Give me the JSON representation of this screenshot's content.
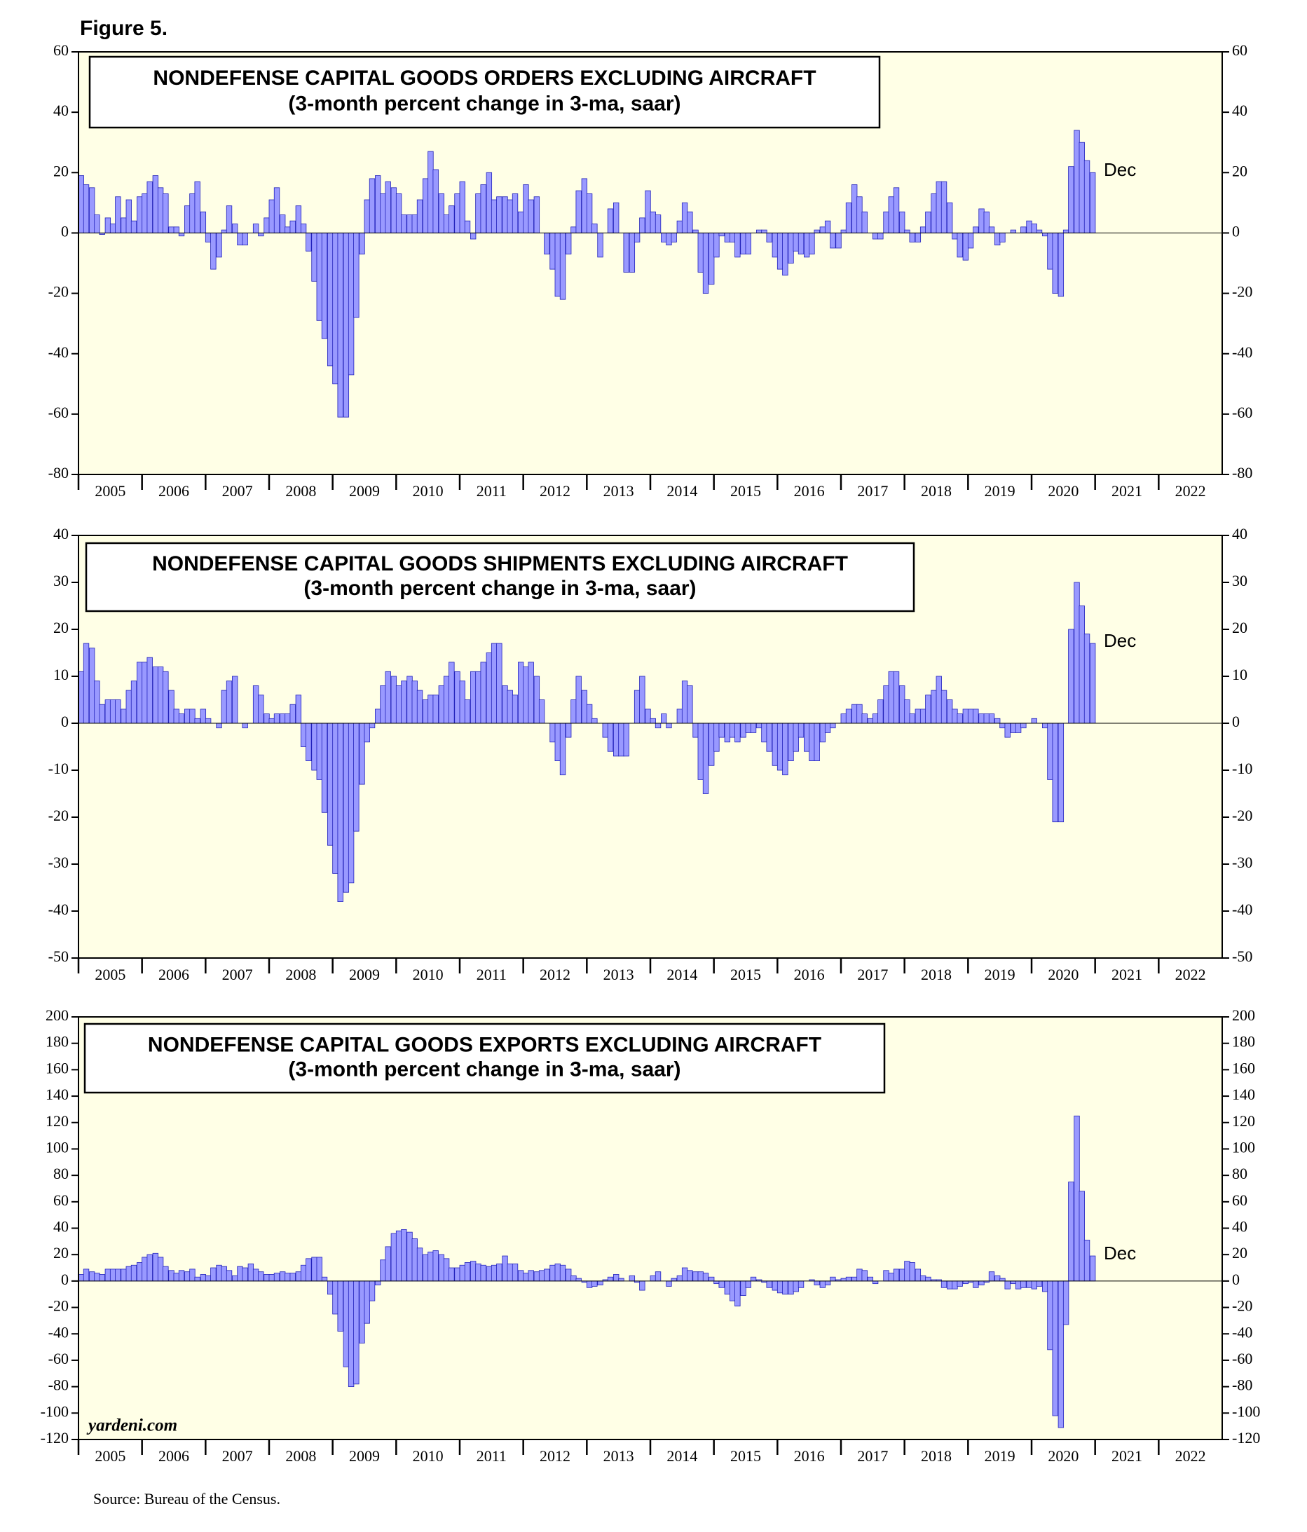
{
  "title": "Figure 5.",
  "source": "Source: Bureau of the Census.",
  "watermark": "yardeni.com",
  "chart_data": [
    {
      "type": "bar",
      "title": "NONDEFENSE CAPITAL GOODS ORDERS EXCLUDING AIRCRAFT",
      "subtitle": "(3-month percent change in 3-ma, saar)",
      "annotation": "Dec",
      "color": "#9999ff",
      "xlim": [
        2005,
        2023
      ],
      "xticks": [
        2005,
        2006,
        2007,
        2008,
        2009,
        2010,
        2011,
        2012,
        2013,
        2014,
        2015,
        2016,
        2017,
        2018,
        2019,
        2020,
        2021,
        2022
      ],
      "ylim": [
        -80,
        60
      ],
      "yticks": [
        -80,
        -60,
        -40,
        -20,
        0,
        20,
        40,
        60
      ],
      "x": [
        2005,
        2005.08,
        2005.17,
        2005.25,
        2005.33,
        2005.42,
        2005.5,
        2005.58,
        2005.67,
        2005.75,
        2005.83,
        2005.92,
        2006,
        2006.08,
        2006.17,
        2006.25,
        2006.33,
        2006.42,
        2006.5,
        2006.58,
        2006.67,
        2006.75,
        2006.83,
        2006.92,
        2007,
        2007.08,
        2007.17,
        2007.25,
        2007.33,
        2007.42,
        2007.5,
        2007.58,
        2007.67,
        2007.75,
        2007.83,
        2007.92,
        2008,
        2008.08,
        2008.17,
        2008.25,
        2008.33,
        2008.42,
        2008.5,
        2008.58,
        2008.67,
        2008.75,
        2008.83,
        2008.92,
        2009,
        2009.08,
        2009.17,
        2009.25,
        2009.33,
        2009.42,
        2009.5,
        2009.58,
        2009.67,
        2009.75,
        2009.83,
        2009.92,
        2010,
        2010.08,
        2010.17,
        2010.25,
        2010.33,
        2010.42,
        2010.5,
        2010.58,
        2010.67,
        2010.75,
        2010.83,
        2010.92,
        2011,
        2011.08,
        2011.17,
        2011.25,
        2011.33,
        2011.42,
        2011.5,
        2011.58,
        2011.67,
        2011.75,
        2011.83,
        2011.92,
        2012,
        2012.08,
        2012.17,
        2012.25,
        2012.33,
        2012.42,
        2012.5,
        2012.58,
        2012.67,
        2012.75,
        2012.83,
        2012.92,
        2013,
        2013.08,
        2013.17,
        2013.25,
        2013.33,
        2013.42,
        2013.5,
        2013.58,
        2013.67,
        2013.75,
        2013.83,
        2013.92,
        2014,
        2014.08,
        2014.17,
        2014.25,
        2014.33,
        2014.42,
        2014.5,
        2014.58,
        2014.67,
        2014.75,
        2014.83,
        2014.92,
        2015,
        2015.08,
        2015.17,
        2015.25,
        2015.33,
        2015.42,
        2015.5,
        2015.58,
        2015.67,
        2015.75,
        2015.83,
        2015.92,
        2016,
        2016.08,
        2016.17,
        2016.25,
        2016.33,
        2016.42,
        2016.5,
        2016.58,
        2016.67,
        2016.75,
        2016.83,
        2016.92,
        2017,
        2017.08,
        2017.17,
        2017.25,
        2017.33,
        2017.42,
        2017.5,
        2017.58,
        2017.67,
        2017.75,
        2017.83,
        2017.92,
        2018,
        2018.08,
        2018.17,
        2018.25,
        2018.33,
        2018.42,
        2018.5,
        2018.58,
        2018.67,
        2018.75,
        2018.83,
        2018.92,
        2019,
        2019.08,
        2019.17,
        2019.25,
        2019.33,
        2019.42,
        2019.5,
        2019.58,
        2019.67,
        2019.75,
        2019.83,
        2019.92,
        2020,
        2020.08,
        2020.17,
        2020.25,
        2020.33,
        2020.42,
        2020.5,
        2020.58,
        2020.67,
        2020.75,
        2020.83,
        2020.92
      ],
      "values": [
        19,
        16,
        15,
        6,
        -0.5,
        5,
        3,
        12,
        5,
        11,
        4,
        12,
        13,
        17,
        19,
        15,
        13,
        2,
        2,
        -1,
        9,
        13,
        17,
        7,
        -3,
        -12,
        -8,
        1,
        9,
        3,
        -4,
        -4,
        0,
        3,
        -1,
        5,
        11,
        15,
        6,
        2,
        4,
        9,
        3,
        -6,
        -16,
        -29,
        -35,
        -44,
        -50,
        -61,
        -61,
        -47,
        -28,
        -7,
        11,
        18,
        19,
        13,
        17,
        15,
        13,
        6,
        6,
        6,
        11,
        18,
        27,
        21,
        13,
        6,
        9,
        13,
        17,
        4,
        -2,
        13,
        16,
        20,
        11,
        12,
        12,
        11,
        13,
        7,
        16,
        11,
        12,
        0,
        -7,
        -12,
        -21,
        -22,
        -7,
        2,
        14,
        18,
        13,
        3,
        -8,
        0,
        8,
        10,
        0,
        -13,
        -13,
        -3,
        5,
        14,
        7,
        6,
        -3,
        -4,
        -3,
        4,
        10,
        7,
        1,
        -13,
        -20,
        -17,
        -8,
        -1,
        -3,
        -3,
        -8,
        -7,
        -7,
        0,
        1,
        1,
        -3,
        -8,
        -12,
        -14,
        -10,
        -6,
        -7,
        -8,
        -7,
        1,
        2,
        4,
        -5,
        -5,
        1,
        10,
        16,
        12,
        7,
        0,
        -2,
        -2,
        7,
        12,
        15,
        7,
        1,
        -3,
        -3,
        2,
        7,
        13,
        17,
        17,
        10,
        -2,
        -8,
        -9,
        -5,
        2,
        8,
        7,
        2,
        -4,
        -3,
        0,
        1,
        0,
        2,
        4,
        3,
        1,
        -1,
        -12,
        -20,
        -21,
        1,
        22,
        34,
        30,
        24,
        20
      ]
    },
    {
      "type": "bar",
      "title": "NONDEFENSE CAPITAL GOODS SHIPMENTS EXCLUDING AIRCRAFT",
      "subtitle": "(3-month percent change in 3-ma, saar)",
      "annotation": "Dec",
      "color": "#9999ff",
      "xlim": [
        2005,
        2023
      ],
      "xticks": [
        2005,
        2006,
        2007,
        2008,
        2009,
        2010,
        2011,
        2012,
        2013,
        2014,
        2015,
        2016,
        2017,
        2018,
        2019,
        2020,
        2021,
        2022
      ],
      "ylim": [
        -50,
        40
      ],
      "yticks": [
        -50,
        -40,
        -30,
        -20,
        -10,
        0,
        10,
        20,
        30,
        40
      ],
      "x": [
        2005,
        2005.08,
        2005.17,
        2005.25,
        2005.33,
        2005.42,
        2005.5,
        2005.58,
        2005.67,
        2005.75,
        2005.83,
        2005.92,
        2006,
        2006.08,
        2006.17,
        2006.25,
        2006.33,
        2006.42,
        2006.5,
        2006.58,
        2006.67,
        2006.75,
        2006.83,
        2006.92,
        2007,
        2007.08,
        2007.17,
        2007.25,
        2007.33,
        2007.42,
        2007.5,
        2007.58,
        2007.67,
        2007.75,
        2007.83,
        2007.92,
        2008,
        2008.08,
        2008.17,
        2008.25,
        2008.33,
        2008.42,
        2008.5,
        2008.58,
        2008.67,
        2008.75,
        2008.83,
        2008.92,
        2009,
        2009.08,
        2009.17,
        2009.25,
        2009.33,
        2009.42,
        2009.5,
        2009.58,
        2009.67,
        2009.75,
        2009.83,
        2009.92,
        2010,
        2010.08,
        2010.17,
        2010.25,
        2010.33,
        2010.42,
        2010.5,
        2010.58,
        2010.67,
        2010.75,
        2010.83,
        2010.92,
        2011,
        2011.08,
        2011.17,
        2011.25,
        2011.33,
        2011.42,
        2011.5,
        2011.58,
        2011.67,
        2011.75,
        2011.83,
        2011.92,
        2012,
        2012.08,
        2012.17,
        2012.25,
        2012.33,
        2012.42,
        2012.5,
        2012.58,
        2012.67,
        2012.75,
        2012.83,
        2012.92,
        2013,
        2013.08,
        2013.17,
        2013.25,
        2013.33,
        2013.42,
        2013.5,
        2013.58,
        2013.67,
        2013.75,
        2013.83,
        2013.92,
        2014,
        2014.08,
        2014.17,
        2014.25,
        2014.33,
        2014.42,
        2014.5,
        2014.58,
        2014.67,
        2014.75,
        2014.83,
        2014.92,
        2015,
        2015.08,
        2015.17,
        2015.25,
        2015.33,
        2015.42,
        2015.5,
        2015.58,
        2015.67,
        2015.75,
        2015.83,
        2015.92,
        2016,
        2016.08,
        2016.17,
        2016.25,
        2016.33,
        2016.42,
        2016.5,
        2016.58,
        2016.67,
        2016.75,
        2016.83,
        2016.92,
        2017,
        2017.08,
        2017.17,
        2017.25,
        2017.33,
        2017.42,
        2017.5,
        2017.58,
        2017.67,
        2017.75,
        2017.83,
        2017.92,
        2018,
        2018.08,
        2018.17,
        2018.25,
        2018.33,
        2018.42,
        2018.5,
        2018.58,
        2018.67,
        2018.75,
        2018.83,
        2018.92,
        2019,
        2019.08,
        2019.17,
        2019.25,
        2019.33,
        2019.42,
        2019.5,
        2019.58,
        2019.67,
        2019.75,
        2019.83,
        2019.92,
        2020,
        2020.08,
        2020.17,
        2020.25,
        2020.33,
        2020.42,
        2020.5,
        2020.58,
        2020.67,
        2020.75,
        2020.83,
        2020.92
      ],
      "values": [
        11,
        17,
        16,
        9,
        4,
        5,
        5,
        5,
        3,
        7,
        9,
        13,
        13,
        14,
        12,
        12,
        11,
        7,
        3,
        2,
        3,
        3,
        1,
        3,
        1,
        0,
        -1,
        7,
        9,
        10,
        0,
        -1,
        0,
        8,
        6,
        2,
        1,
        2,
        2,
        2,
        4,
        6,
        -5,
        -8,
        -10,
        -12,
        -19,
        -26,
        -32,
        -38,
        -36,
        -34,
        -23,
        -13,
        -4,
        -1,
        3,
        8,
        11,
        10,
        8,
        9,
        10,
        9,
        7,
        5,
        6,
        6,
        8,
        10,
        13,
        11,
        9,
        5,
        11,
        11,
        13,
        15,
        17,
        17,
        8,
        7,
        6,
        13,
        12,
        13,
        10,
        5,
        0,
        -4,
        -8,
        -11,
        -3,
        5,
        10,
        7,
        4,
        1,
        0,
        -3,
        -6,
        -7,
        -7,
        -7,
        0,
        7,
        10,
        3,
        1,
        -1,
        2,
        -1,
        0,
        3,
        9,
        8,
        -3,
        -12,
        -15,
        -9,
        -6,
        -3,
        -4,
        -3,
        -4,
        -3,
        -2,
        -2,
        -1,
        -4,
        -6,
        -9,
        -10,
        -11,
        -8,
        -6,
        -3,
        -6,
        -8,
        -8,
        -4,
        -2,
        -1,
        0,
        2,
        3,
        4,
        4,
        2,
        1,
        2,
        5,
        8,
        11,
        11,
        8,
        5,
        2,
        3,
        3,
        6,
        7,
        10,
        7,
        5,
        3,
        2,
        3,
        3,
        3,
        2,
        2,
        2,
        1,
        -1,
        -3,
        -2,
        -2,
        -1,
        0,
        1,
        0,
        -1,
        -12,
        -21,
        -21,
        0,
        20,
        30,
        25,
        19,
        17
      ]
    },
    {
      "type": "bar",
      "title": "NONDEFENSE CAPITAL GOODS EXPORTS EXCLUDING AIRCRAFT",
      "subtitle": "(3-month percent change in 3-ma, saar)",
      "annotation": "Dec",
      "color": "#9999ff",
      "xlim": [
        2005,
        2023
      ],
      "xticks": [
        2005,
        2006,
        2007,
        2008,
        2009,
        2010,
        2011,
        2012,
        2013,
        2014,
        2015,
        2016,
        2017,
        2018,
        2019,
        2020,
        2021,
        2022
      ],
      "ylim": [
        -120,
        200
      ],
      "yticks": [
        -120,
        -100,
        -80,
        -60,
        -40,
        -20,
        0,
        20,
        40,
        60,
        80,
        100,
        120,
        140,
        160,
        180,
        200
      ],
      "x": [
        2005,
        2005.08,
        2005.17,
        2005.25,
        2005.33,
        2005.42,
        2005.5,
        2005.58,
        2005.67,
        2005.75,
        2005.83,
        2005.92,
        2006,
        2006.08,
        2006.17,
        2006.25,
        2006.33,
        2006.42,
        2006.5,
        2006.58,
        2006.67,
        2006.75,
        2006.83,
        2006.92,
        2007,
        2007.08,
        2007.17,
        2007.25,
        2007.33,
        2007.42,
        2007.5,
        2007.58,
        2007.67,
        2007.75,
        2007.83,
        2007.92,
        2008,
        2008.08,
        2008.17,
        2008.25,
        2008.33,
        2008.42,
        2008.5,
        2008.58,
        2008.67,
        2008.75,
        2008.83,
        2008.92,
        2009,
        2009.08,
        2009.17,
        2009.25,
        2009.33,
        2009.42,
        2009.5,
        2009.58,
        2009.67,
        2009.75,
        2009.83,
        2009.92,
        2010,
        2010.08,
        2010.17,
        2010.25,
        2010.33,
        2010.42,
        2010.5,
        2010.58,
        2010.67,
        2010.75,
        2010.83,
        2010.92,
        2011,
        2011.08,
        2011.17,
        2011.25,
        2011.33,
        2011.42,
        2011.5,
        2011.58,
        2011.67,
        2011.75,
        2011.83,
        2011.92,
        2012,
        2012.08,
        2012.17,
        2012.25,
        2012.33,
        2012.42,
        2012.5,
        2012.58,
        2012.67,
        2012.75,
        2012.83,
        2012.92,
        2013,
        2013.08,
        2013.17,
        2013.25,
        2013.33,
        2013.42,
        2013.5,
        2013.58,
        2013.67,
        2013.75,
        2013.83,
        2013.92,
        2014,
        2014.08,
        2014.17,
        2014.25,
        2014.33,
        2014.42,
        2014.5,
        2014.58,
        2014.67,
        2014.75,
        2014.83,
        2014.92,
        2015,
        2015.08,
        2015.17,
        2015.25,
        2015.33,
        2015.42,
        2015.5,
        2015.58,
        2015.67,
        2015.75,
        2015.83,
        2015.92,
        2016,
        2016.08,
        2016.17,
        2016.25,
        2016.33,
        2016.42,
        2016.5,
        2016.58,
        2016.67,
        2016.75,
        2016.83,
        2016.92,
        2017,
        2017.08,
        2017.17,
        2017.25,
        2017.33,
        2017.42,
        2017.5,
        2017.58,
        2017.67,
        2017.75,
        2017.83,
        2017.92,
        2018,
        2018.08,
        2018.17,
        2018.25,
        2018.33,
        2018.42,
        2018.5,
        2018.58,
        2018.67,
        2018.75,
        2018.83,
        2018.92,
        2019,
        2019.08,
        2019.17,
        2019.25,
        2019.33,
        2019.42,
        2019.5,
        2019.58,
        2019.67,
        2019.75,
        2019.83,
        2019.92,
        2020,
        2020.08,
        2020.17,
        2020.25,
        2020.33,
        2020.42,
        2020.5,
        2020.58,
        2020.67,
        2020.75,
        2020.83,
        2020.92
      ],
      "values": [
        5,
        9,
        7,
        6,
        5,
        9,
        9,
        9,
        9,
        11,
        12,
        14,
        18,
        20,
        21,
        18,
        11,
        8,
        6,
        8,
        7,
        9,
        3,
        5,
        4,
        10,
        12,
        11,
        8,
        4,
        11,
        10,
        13,
        9,
        7,
        5,
        5,
        6,
        7,
        6,
        6,
        7,
        12,
        17,
        18,
        18,
        3,
        -10,
        -25,
        -38,
        -65,
        -80,
        -78,
        -47,
        -32,
        -15,
        -3,
        16,
        26,
        36,
        38,
        39,
        37,
        32,
        25,
        20,
        22,
        23,
        20,
        17,
        10,
        10,
        12,
        14,
        15,
        13,
        12,
        11,
        12,
        13,
        19,
        13,
        13,
        8,
        6,
        8,
        7,
        8,
        9,
        12,
        13,
        12,
        9,
        4,
        2,
        -1,
        -5,
        -4,
        -3,
        1,
        3,
        5,
        2,
        0,
        4,
        -1,
        -7,
        0,
        4,
        7,
        0,
        -4,
        2,
        4,
        10,
        8,
        7,
        7,
        6,
        3,
        -2,
        -5,
        -10,
        -15,
        -19,
        -11,
        -5,
        3,
        1,
        -1,
        -5,
        -7,
        -9,
        -10,
        -10,
        -8,
        -5,
        0,
        1,
        -3,
        -5,
        -3,
        3,
        1,
        2,
        3,
        3,
        9,
        8,
        3,
        -2,
        0,
        8,
        6,
        9,
        9,
        15,
        14,
        9,
        4,
        3,
        1,
        1,
        -5,
        -6,
        -6,
        -4,
        -2,
        -1,
        -5,
        -3,
        -1,
        7,
        4,
        2,
        -6,
        -2,
        -6,
        -5,
        -5,
        -6,
        -4,
        -8,
        -52,
        -102,
        -111,
        -33,
        75,
        125,
        68,
        31,
        19
      ]
    }
  ]
}
